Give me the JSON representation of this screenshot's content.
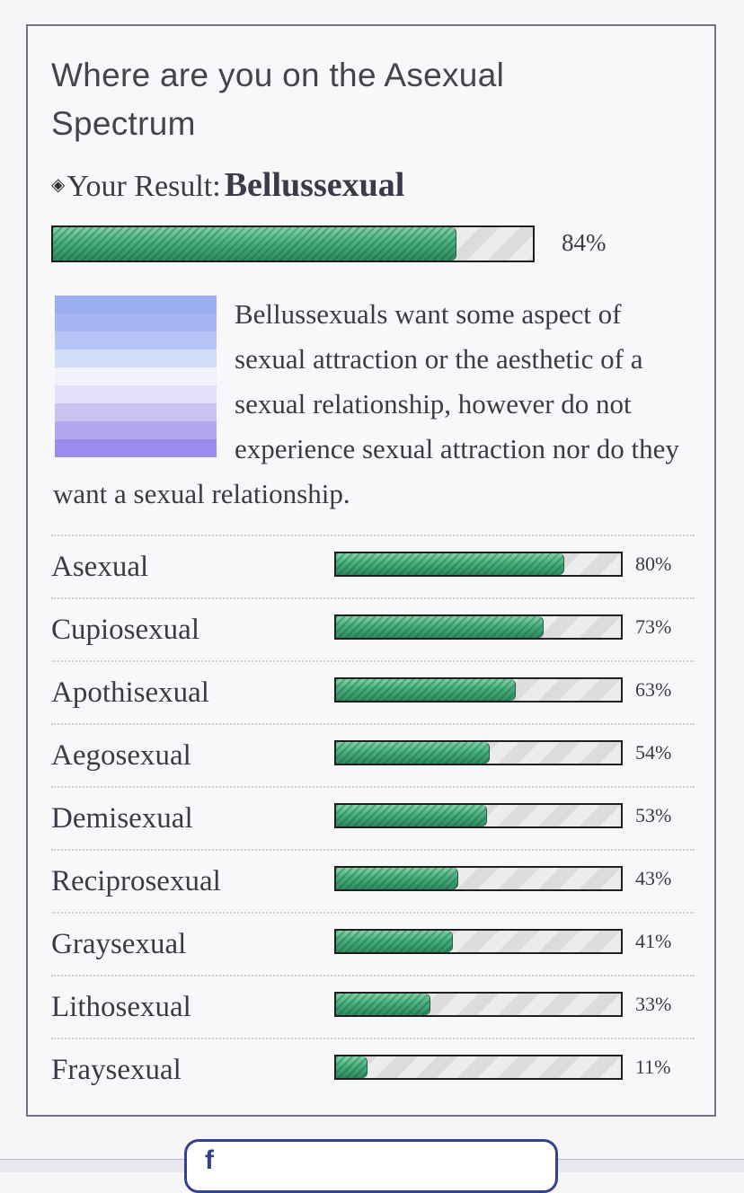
{
  "quiz": {
    "title": "Where are you on the Asexual Spectrum",
    "result_prefix": "Your Result:",
    "result_name": "Bellussexual",
    "result_percent_label": "84%",
    "result_percent": 84,
    "description": "Bellussexuals want some aspect of sexual attraction or the aesthetic of a sexual relationship, however do not experience sexual attraction nor do they want a sexual relationship."
  },
  "flag_colors": [
    "#9aaef0",
    "#a6b6f2",
    "#b6c5f5",
    "#d3dcf8",
    "#f1f1fb",
    "#e2e0fa",
    "#cbc4f3",
    "#b3a7ee",
    "#9d8ced"
  ],
  "bar_colors": {
    "fill": "#45b07d",
    "border": "#1f1f1f",
    "empty": "#e4e4e4"
  },
  "results": [
    {
      "label": "Asexual",
      "percent_label": "80%",
      "percent": 80
    },
    {
      "label": "Cupiosexual",
      "percent_label": "73%",
      "percent": 73
    },
    {
      "label": "Apothisexual",
      "percent_label": "63%",
      "percent": 63
    },
    {
      "label": "Aegosexual",
      "percent_label": "54%",
      "percent": 54
    },
    {
      "label": "Demisexual",
      "percent_label": "53%",
      "percent": 53
    },
    {
      "label": "Reciprosexual",
      "percent_label": "43%",
      "percent": 43
    },
    {
      "label": "Graysexual",
      "percent_label": "41%",
      "percent": 41
    },
    {
      "label": "Lithosexual",
      "percent_label": "33%",
      "percent": 33
    },
    {
      "label": "Fraysexual",
      "percent_label": "11%",
      "percent": 11
    }
  ],
  "share": {
    "icon": "facebook-icon",
    "glyph": "f"
  }
}
